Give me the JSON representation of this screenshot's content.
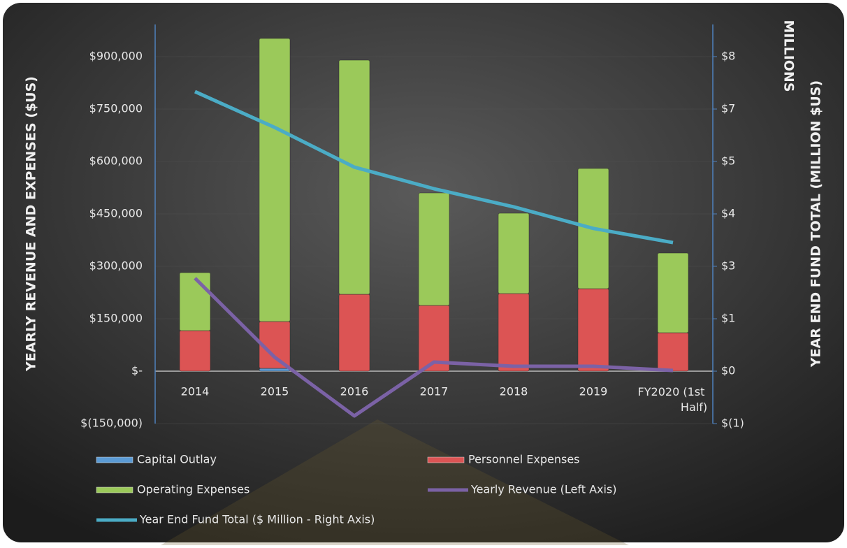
{
  "chart_data": {
    "type": "bar",
    "stacked": true,
    "y_label": "YEARLY REVENUE AND EXPENSES  ($US)",
    "y2_label": "YEAR END FUND TOTAL (MILLION $US)",
    "y2_unit": "MILLIONS",
    "categories": [
      "2014",
      "2015",
      "2016",
      "2017",
      "2018",
      "2019",
      "FY2020 (1st Half)"
    ],
    "series": [
      {
        "name": "Capital Outlay",
        "type": "bar",
        "color": "#5b9bd5",
        "values": [
          0,
          8000,
          0,
          0,
          0,
          0,
          0
        ]
      },
      {
        "name": "Personnel Expenses",
        "type": "bar",
        "color": "#dc5454",
        "values": [
          116000,
          134000,
          220000,
          188000,
          222000,
          236000,
          110000
        ]
      },
      {
        "name": "Operating Expenses",
        "type": "bar",
        "color": "#9bc95a",
        "values": [
          166000,
          810000,
          670000,
          322000,
          230000,
          344000,
          228000
        ]
      },
      {
        "name": "Yearly Revenue (Left Axis)",
        "type": "line",
        "color": "#7b62a6",
        "values": [
          266000,
          40000,
          -128000,
          26000,
          14000,
          14000,
          2000
        ]
      },
      {
        "name": "Year End Fund Total ($ Million - Right Axis)",
        "type": "line",
        "axis": "y2",
        "color": "#4bacc6",
        "values": [
          7.11,
          6.2,
          5.19,
          4.64,
          4.18,
          3.63,
          3.27
        ]
      }
    ],
    "ylim": [
      -150000,
      992000
    ],
    "yticks": [
      {
        "value": -150000,
        "label": "$(150,000)"
      },
      {
        "value": 0,
        "label": "$-"
      },
      {
        "value": 150000,
        "label": "$150,000"
      },
      {
        "value": 300000,
        "label": "$300,000"
      },
      {
        "value": 450000,
        "label": "$450,000"
      },
      {
        "value": 600000,
        "label": "$600,000"
      },
      {
        "value": 750000,
        "label": "$750,000"
      },
      {
        "value": 900000,
        "label": "$900,000"
      }
    ],
    "y2lim": [
      -1.333,
      8.818
    ],
    "y2ticks": [
      {
        "value": -1.333,
        "label": "$(1)"
      },
      {
        "value": 0,
        "label": "$0"
      },
      {
        "value": 1.333,
        "label": "$1"
      },
      {
        "value": 2.667,
        "label": "$3"
      },
      {
        "value": 4,
        "label": "$4"
      },
      {
        "value": 5.333,
        "label": "$5"
      },
      {
        "value": 6.667,
        "label": "$7"
      },
      {
        "value": 8,
        "label": "$8"
      }
    ],
    "grid": true
  }
}
